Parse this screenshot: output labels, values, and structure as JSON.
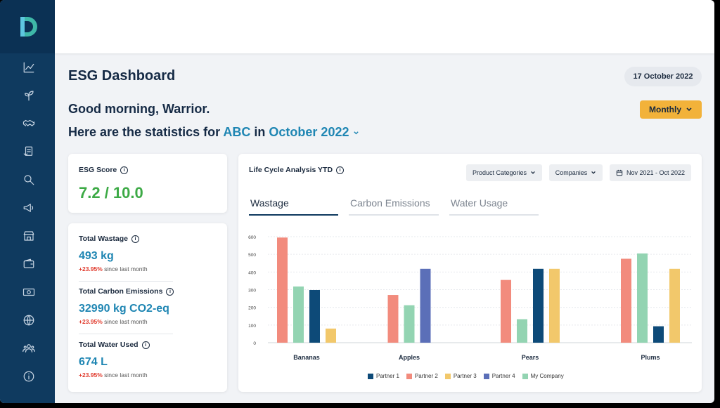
{
  "header": {
    "title": "ESG Dashboard",
    "date": "17 October 2022",
    "greeting": "Good morning, Warrior.",
    "stats_prefix": "Here are the statistics for ",
    "company": "ABC",
    "stats_mid": " in ",
    "period": "October 2022",
    "period_button": "Monthly"
  },
  "sidebar": {
    "logo": "D",
    "items": [
      "chart-line-icon",
      "sprout-icon",
      "handshake-icon",
      "report-icon",
      "search-icon",
      "megaphone-icon",
      "store-icon",
      "wallet-icon",
      "cash-icon",
      "globe-icon",
      "people-icon",
      "info-icon"
    ]
  },
  "score": {
    "label": "ESG Score",
    "value": "7.2 / 10.0"
  },
  "metrics": [
    {
      "label": "Total Wastage",
      "value": "493 kg",
      "change_pct": "+23.95%",
      "change_text": " since last month"
    },
    {
      "label": "Total Carbon Emissions",
      "value": "32990 kg CO2-eq",
      "change_pct": "+23.95%",
      "change_text": " since last month"
    },
    {
      "label": "Total Water Used",
      "value": "674 L",
      "change_pct": "+23.95%",
      "change_text": " since last month"
    }
  ],
  "lca": {
    "title": "Life Cycle Analysis YTD",
    "filters": {
      "category": "Product Categories",
      "companies": "Companies",
      "range": "Nov 2021 - Oct 2022"
    },
    "tabs": [
      "Wastage",
      "Carbon Emissions",
      "Water Usage"
    ],
    "active_tab": "Wastage"
  },
  "colors": {
    "Partner 1": "#0d4a78",
    "Partner 2": "#f28b7d",
    "Partner 3": "#f2c86b",
    "Partner 4": "#5b6fb8",
    "My Company": "#93d4b2"
  },
  "chart_data": {
    "type": "bar",
    "categories": [
      "Bananas",
      "Apples",
      "Pears",
      "Plums"
    ],
    "ylim": [
      0,
      600
    ],
    "yticks": [
      0,
      100,
      200,
      300,
      400,
      500,
      600
    ],
    "grid": true,
    "legend_position": "bottom",
    "series": [
      {
        "name": "Partner 2",
        "values": [
          595,
          270,
          355,
          475
        ]
      },
      {
        "name": "My Company",
        "values": [
          318,
          212,
          133,
          505
        ]
      },
      {
        "name": "Partner 1",
        "values": [
          298,
          null,
          418,
          93
        ]
      },
      {
        "name": "Partner 3",
        "values": [
          80,
          null,
          418,
          418
        ]
      },
      {
        "name": "Partner 4",
        "values": [
          null,
          418,
          null,
          null
        ]
      }
    ],
    "legend": [
      "Partner 1",
      "Partner 2",
      "Partner 3",
      "Partner 4",
      "My Company"
    ]
  }
}
